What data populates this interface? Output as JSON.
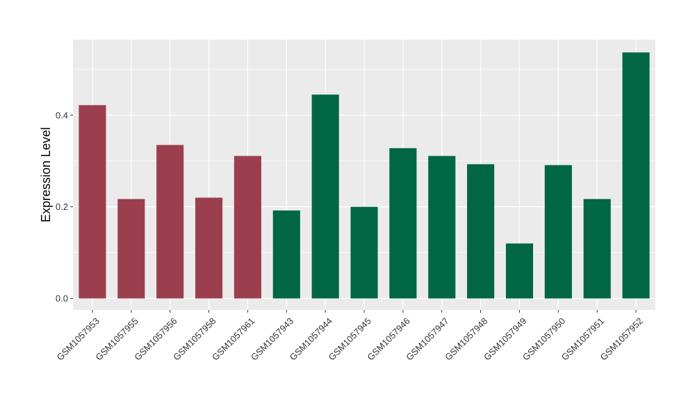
{
  "chart_data": {
    "type": "bar",
    "title": "",
    "xlabel": "",
    "ylabel": "Expression Level",
    "categories": [
      "GSM1057953",
      "GSM1057955",
      "GSM1057956",
      "GSM1057958",
      "GSM1057961",
      "GSM1057943",
      "GSM1057944",
      "GSM1057945",
      "GSM1057946",
      "GSM1057947",
      "GSM1057948",
      "GSM1057949",
      "GSM1057950",
      "GSM1057951",
      "GSM1057952"
    ],
    "values": [
      0.422,
      0.217,
      0.335,
      0.22,
      0.311,
      0.192,
      0.445,
      0.2,
      0.328,
      0.311,
      0.293,
      0.12,
      0.291,
      0.217,
      0.537
    ],
    "bar_groups": [
      "a",
      "a",
      "a",
      "a",
      "a",
      "b",
      "b",
      "b",
      "b",
      "b",
      "b",
      "b",
      "b",
      "b",
      "b"
    ],
    "group_colors": {
      "a": "#9b3f4e",
      "b": "#006644"
    },
    "ylim": [
      -0.025,
      0.565
    ],
    "yticks": [
      0.0,
      0.2,
      0.4
    ],
    "ytick_labels": [
      "0.0",
      "0.2",
      "0.4"
    ],
    "grid": true,
    "legend": "none",
    "panel_background": "#ebebeb",
    "grid_color": "#ffffff"
  }
}
